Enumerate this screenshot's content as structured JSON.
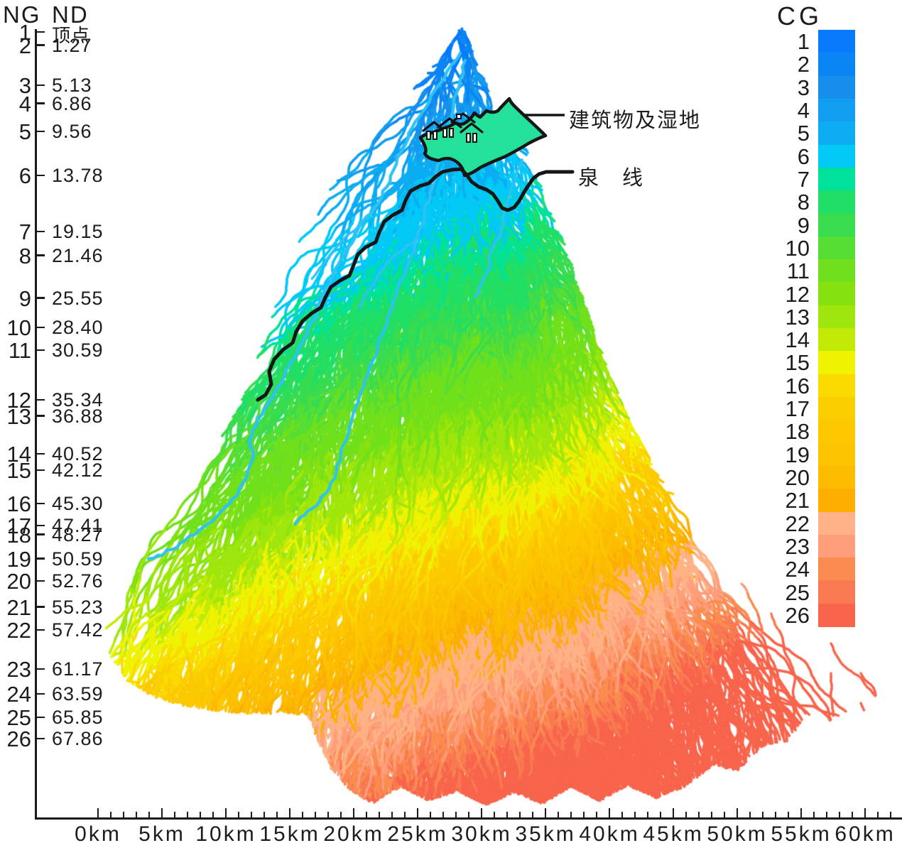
{
  "headers": {
    "ng": "NG",
    "nd": "ND",
    "cg": "CG"
  },
  "left_axis": {
    "rows": [
      {
        "ng": "1",
        "nd": "顶点",
        "nd_km": 0
      },
      {
        "ng": "2",
        "nd": "1.27",
        "nd_km": 1.27
      },
      {
        "ng": "3",
        "nd": "5.13",
        "nd_km": 5.13
      },
      {
        "ng": "4",
        "nd": "6.86",
        "nd_km": 6.86
      },
      {
        "ng": "5",
        "nd": "9.56",
        "nd_km": 9.56
      },
      {
        "ng": "6",
        "nd": "13.78",
        "nd_km": 13.78
      },
      {
        "ng": "7",
        "nd": "19.15",
        "nd_km": 19.15
      },
      {
        "ng": "8",
        "nd": "21.46",
        "nd_km": 21.46
      },
      {
        "ng": "9",
        "nd": "25.55",
        "nd_km": 25.55
      },
      {
        "ng": "10",
        "nd": "28.40",
        "nd_km": 28.4
      },
      {
        "ng": "11",
        "nd": "30.59",
        "nd_km": 30.59
      },
      {
        "ng": "12",
        "nd": "35.34",
        "nd_km": 35.34
      },
      {
        "ng": "13",
        "nd": "36.88",
        "nd_km": 36.88
      },
      {
        "ng": "14",
        "nd": "40.52",
        "nd_km": 40.52
      },
      {
        "ng": "15",
        "nd": "42.12",
        "nd_km": 42.12
      },
      {
        "ng": "16",
        "nd": "45.30",
        "nd_km": 45.3
      },
      {
        "ng": "17",
        "nd": "47.41",
        "nd_km": 47.41
      },
      {
        "ng": "18",
        "nd": "48.27",
        "nd_km": 48.27
      },
      {
        "ng": "19",
        "nd": "50.59",
        "nd_km": 50.59
      },
      {
        "ng": "20",
        "nd": "52.76",
        "nd_km": 52.76
      },
      {
        "ng": "21",
        "nd": "55.23",
        "nd_km": 55.23
      },
      {
        "ng": "22",
        "nd": "57.42",
        "nd_km": 57.42
      },
      {
        "ng": "23",
        "nd": "61.17",
        "nd_km": 61.17
      },
      {
        "ng": "24",
        "nd": "63.59",
        "nd_km": 63.59
      },
      {
        "ng": "25",
        "nd": "65.85",
        "nd_km": 65.85
      },
      {
        "ng": "26",
        "nd": "67.86",
        "nd_km": 67.86
      }
    ]
  },
  "legend": {
    "title": "CG",
    "items": [
      {
        "label": "1",
        "color": "#077BFB"
      },
      {
        "label": "2",
        "color": "#0C85F4"
      },
      {
        "label": "3",
        "color": "#168FEC"
      },
      {
        "label": "4",
        "color": "#119DF0"
      },
      {
        "label": "5",
        "color": "#0CADF2"
      },
      {
        "label": "6",
        "color": "#03C9F6"
      },
      {
        "label": "7",
        "color": "#00E29B"
      },
      {
        "label": "8",
        "color": "#20DF66"
      },
      {
        "label": "9",
        "color": "#3ADC4F"
      },
      {
        "label": "10",
        "color": "#57DE34"
      },
      {
        "label": "11",
        "color": "#71E01C"
      },
      {
        "label": "12",
        "color": "#86E20F"
      },
      {
        "label": "13",
        "color": "#9FE60D"
      },
      {
        "label": "14",
        "color": "#C1EB07"
      },
      {
        "label": "15",
        "color": "#EFF200"
      },
      {
        "label": "16",
        "color": "#FBDA00"
      },
      {
        "label": "17",
        "color": "#FBCE00"
      },
      {
        "label": "18",
        "color": "#FCC900"
      },
      {
        "label": "19",
        "color": "#FCC300"
      },
      {
        "label": "20",
        "color": "#FCBB00"
      },
      {
        "label": "21",
        "color": "#FCAF00"
      },
      {
        "label": "22",
        "color": "#FFB286"
      },
      {
        "label": "23",
        "color": "#FE9E7A"
      },
      {
        "label": "24",
        "color": "#FB8C50"
      },
      {
        "label": "25",
        "color": "#F97A52"
      },
      {
        "label": "26",
        "color": "#F8654C"
      }
    ]
  },
  "bottom_axis": {
    "unit": "km",
    "major_labels": [
      "0km",
      "5km",
      "10km",
      "15km",
      "20km",
      "25km",
      "30km",
      "35km",
      "40km",
      "45km",
      "50km",
      "55km",
      "60km"
    ],
    "km_per_major": 5,
    "minor_step_km": 1
  },
  "annotations": {
    "wetland": "建筑物及湿地",
    "spring": "泉　线"
  },
  "map": {
    "wetland_fill": "#23E09B",
    "outline_color": "#161616",
    "spring_line_color": "#161616",
    "special_channel_color": "#2EC2F4"
  }
}
